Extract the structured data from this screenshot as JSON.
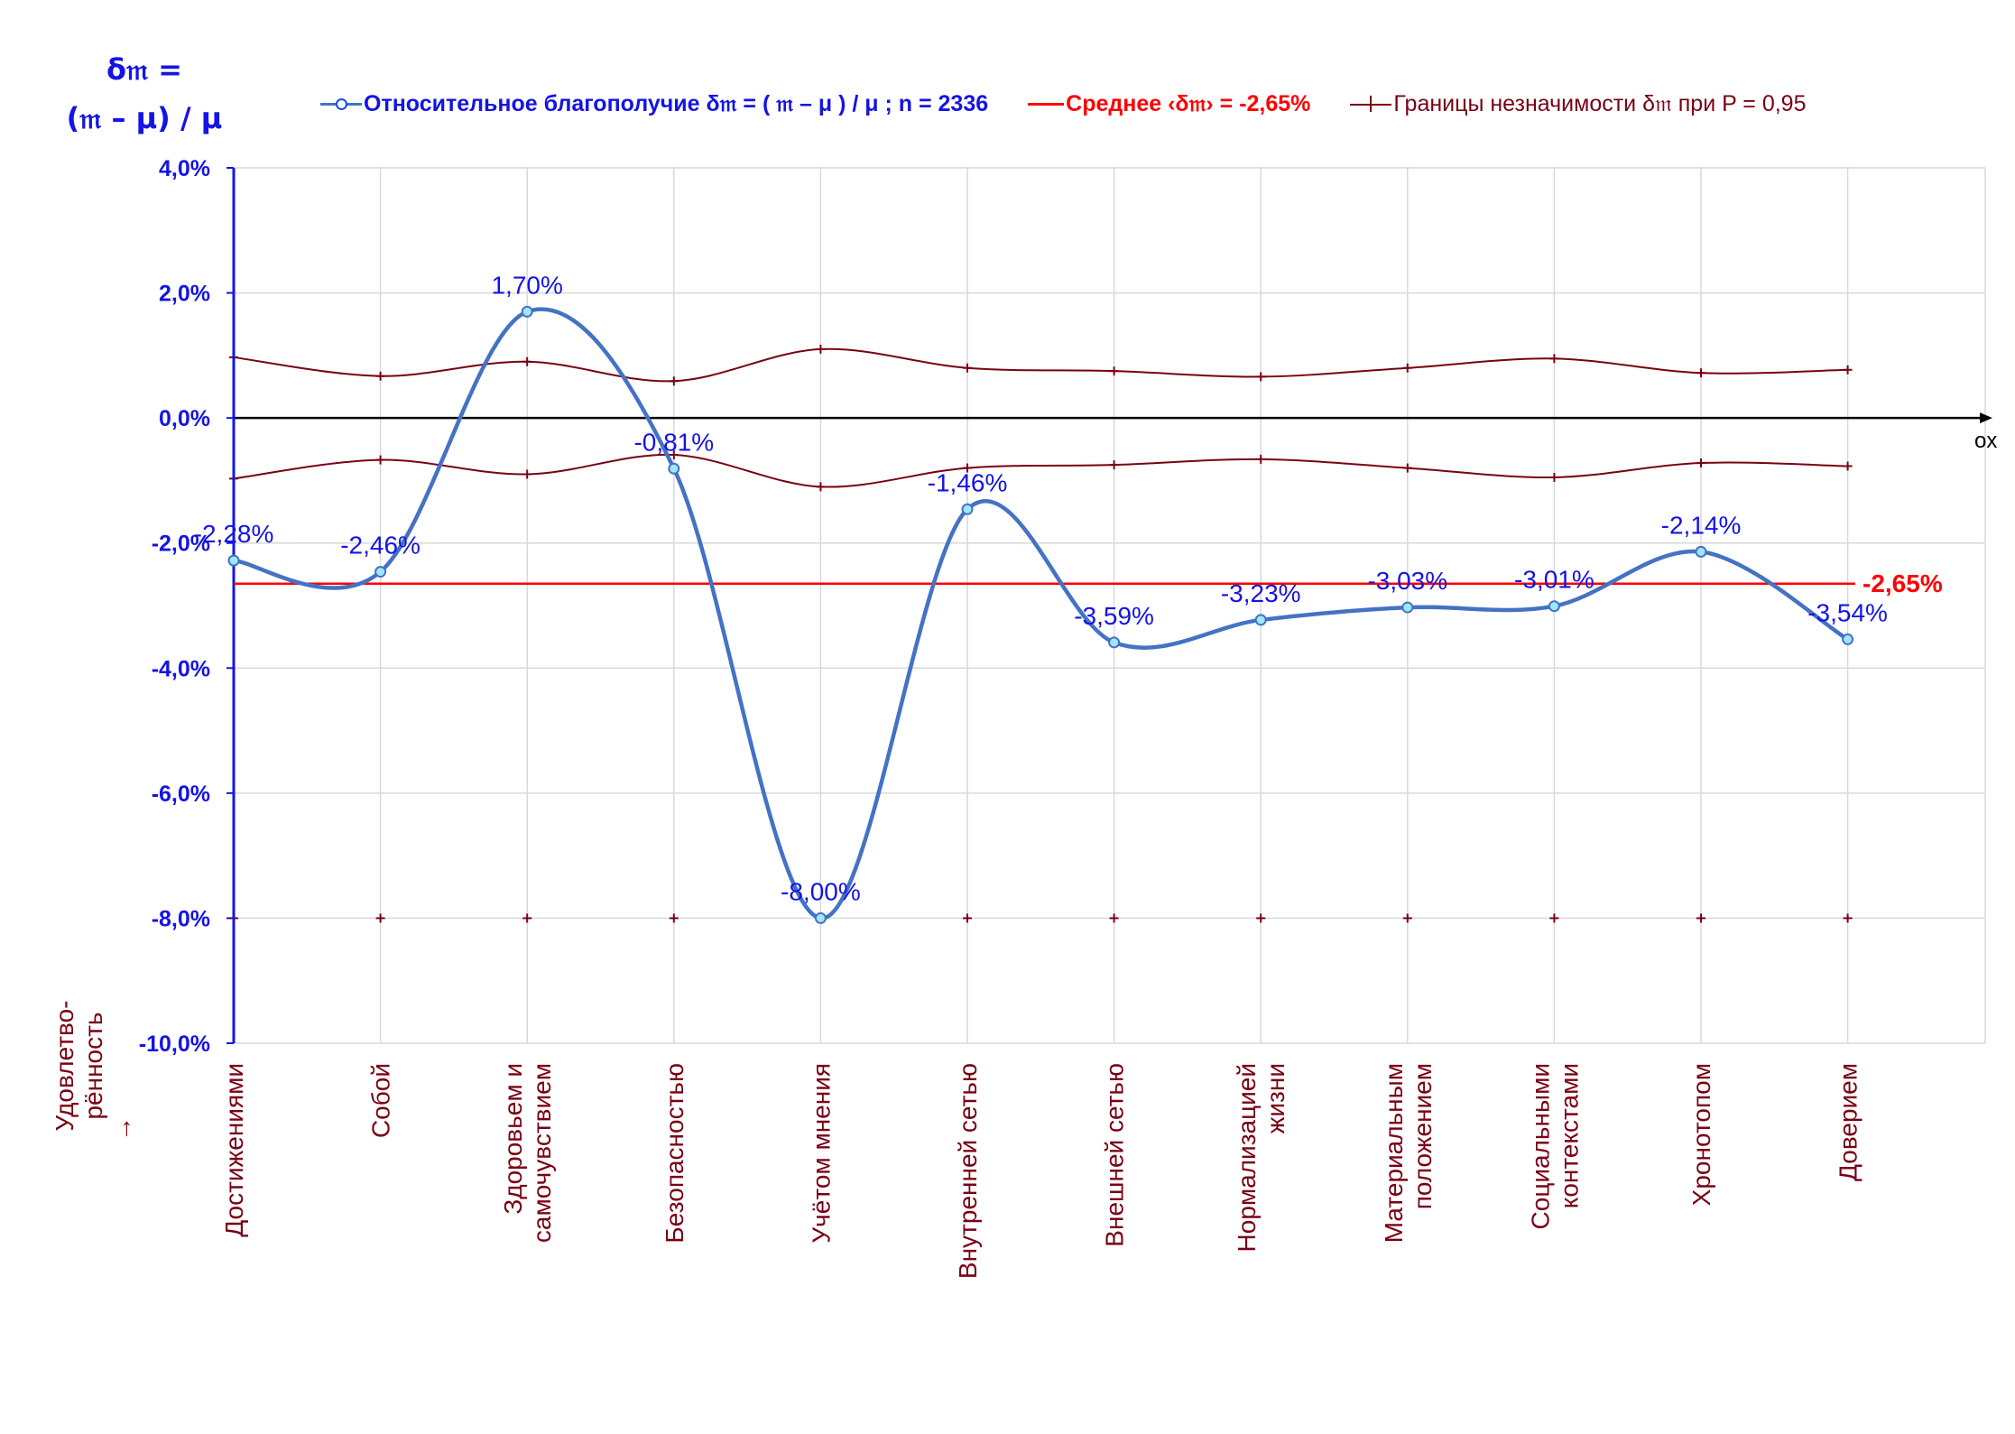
{
  "legend": {
    "series_label": "Относительное благополучие δ𝔪 = ( 𝔪 – μ ) / μ ; n = 2336",
    "mean_label": "Среднее ‹δ𝔪› = -2,65%",
    "bounds_label": "Границы незначимости δ𝔪 при P = 0,95"
  },
  "colors": {
    "series": "#4472c4",
    "series_marker_fill": "#9fe6ff",
    "mean": "#ff0000",
    "bounds": "#7a0014",
    "axis": "#1414e6",
    "xaxis": "#000000",
    "text_blue": "#1414e6",
    "text_dark": "#7a0014",
    "grid": "#d9d9d9"
  },
  "chart_data": {
    "type": "line",
    "title": "",
    "ylabel_line1": "δ𝔪 =",
    "ylabel_line2": "(𝔪 – μ) / μ",
    "xaxis_label": "ox",
    "xlabel": "Удовлетво-\nрённость\n→",
    "ylim": [
      -10,
      4
    ],
    "yticks": [
      4,
      2,
      0,
      -2,
      -4,
      -6,
      -8,
      -10
    ],
    "ytick_labels": [
      "4,0%",
      "2,0%",
      "0,0%",
      "-2,0%",
      "-4,0%",
      "-6,0%",
      "-8,0%",
      "-10,0%"
    ],
    "grid": true,
    "legend_position": "top",
    "categories": [
      "Достижениями",
      "Собой",
      "Здоровьем и\nсамочувствием",
      "Безопасностью",
      "Учётом мнения",
      "Внутренней сетью",
      "Внешней сетью",
      "Нормализацией\nжизни",
      "Материальным\nположением",
      "Социальными\nконтекстами",
      "Хронотопом",
      "Доверием"
    ],
    "series": [
      {
        "name": "Относительное благополучие δ𝔪 = ( 𝔪 – μ ) / μ ; n = 2336",
        "values": [
          -2.28,
          -2.46,
          1.7,
          -0.81,
          -8.0,
          -1.46,
          -3.59,
          -3.23,
          -3.03,
          -3.01,
          -2.14,
          -3.54
        ],
        "labels": [
          "-2,28%",
          "-2,46%",
          "1,70%",
          "-0,81%",
          "-8,00%",
          "-1,46%",
          "-3,59%",
          "-3,23%",
          "-3,03%",
          "-3,01%",
          "-2,14%",
          "-3,54%"
        ]
      },
      {
        "name": "Среднее ‹δ𝔪› = -2,65%",
        "value": -2.65,
        "label": "-2,65%"
      },
      {
        "name": "Границы незначимости δ𝔪 при P = 0,95",
        "upper": [
          0.97,
          0.67,
          0.9,
          0.59,
          1.1,
          0.8,
          0.75,
          0.66,
          0.8,
          0.95,
          0.72,
          0.77
        ],
        "lower": [
          -0.97,
          -0.67,
          -0.9,
          -0.59,
          -1.1,
          -0.8,
          -0.75,
          -0.66,
          -0.8,
          -0.95,
          -0.72,
          -0.77
        ],
        "extra_marks": [
          -8,
          -8,
          -8,
          -8,
          -8,
          -8,
          -8,
          -8,
          -8,
          -8,
          -8,
          -8
        ]
      }
    ]
  }
}
